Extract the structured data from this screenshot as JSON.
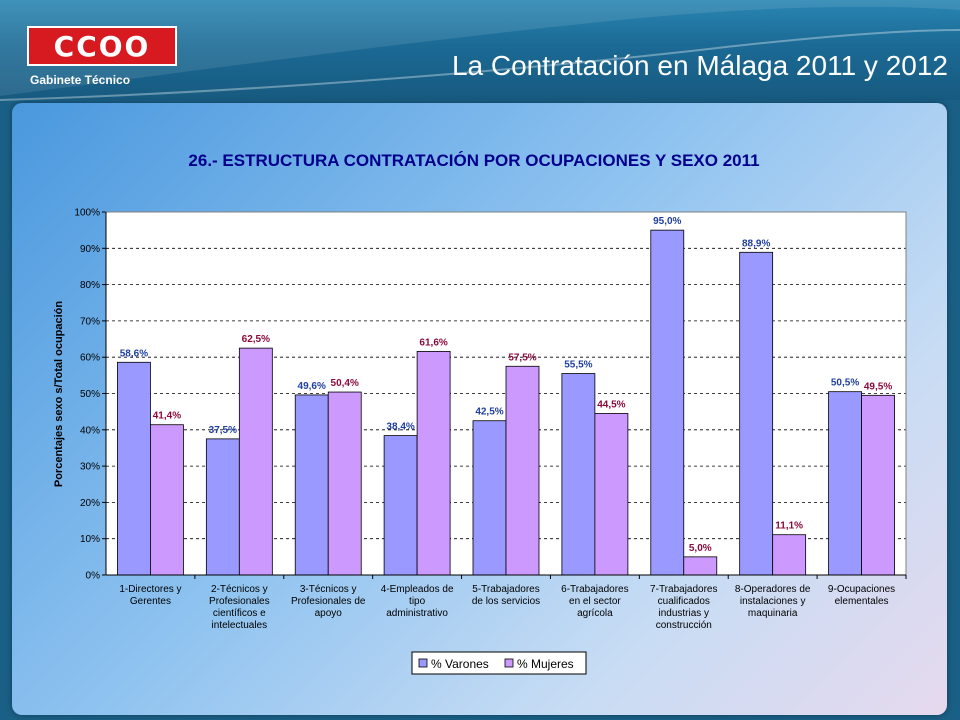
{
  "header": {
    "logo_text": "CCOO",
    "logo_subtitle": "Gabinete   Técnico",
    "title": "La Contratación en Málaga 2011 y 2012"
  },
  "colors": {
    "varones": "#9999ff",
    "mujeres": "#cc99ff",
    "varones_label": "#1f3f9f",
    "mujeres_label": "#8b0a3c",
    "title": "#00008b",
    "logo_red": "#d71920"
  },
  "chart_data": {
    "type": "bar",
    "title": "26.- ESTRUCTURA CONTRATACIÓN POR OCUPACIONES Y SEXO 2011",
    "ylabel": "Porcentajes sexo s/Total ocupación",
    "xlabel": "",
    "ylim": [
      0,
      100
    ],
    "grid": true,
    "legend_position": "bottom",
    "y_ticks": [
      "0%",
      "10%",
      "20%",
      "30%",
      "40%",
      "50%",
      "60%",
      "70%",
      "80%",
      "90%",
      "100%"
    ],
    "categories": [
      [
        "1-Directores y",
        "Gerentes"
      ],
      [
        "2-Técnicos y",
        "Profesionales",
        "científicos e",
        "intelectuales"
      ],
      [
        "3-Técnicos y",
        "Profesionales de",
        "apoyo"
      ],
      [
        "4-Empleados de",
        "tipo",
        "administrativo"
      ],
      [
        "5-Trabajadores",
        "de los servicios"
      ],
      [
        "6-Trabajadores",
        "en el sector",
        "agrícola"
      ],
      [
        "7-Trabajadores",
        "cualificados",
        "industrias y",
        "construcción"
      ],
      [
        "8-Operadores de",
        "instalaciones y",
        "maquinaria"
      ],
      [
        "9-Ocupaciones",
        "elementales"
      ]
    ],
    "series": [
      {
        "name": "% Varones",
        "values": [
          58.6,
          37.5,
          49.6,
          38.4,
          42.5,
          55.5,
          95.0,
          88.9,
          50.5
        ],
        "labels": [
          "58,6%",
          "37,5%",
          "49,6%",
          "38,4%",
          "42,5%",
          "55,5%",
          "95,0%",
          "88,9%",
          "50,5%"
        ]
      },
      {
        "name": "% Mujeres",
        "values": [
          41.4,
          62.5,
          50.4,
          61.6,
          57.5,
          44.5,
          5.0,
          11.1,
          49.5
        ],
        "labels": [
          "41,4%",
          "62,5%",
          "50,4%",
          "61,6%",
          "57,5%",
          "44,5%",
          "5,0%",
          "11,1%",
          "49,5%"
        ]
      }
    ]
  }
}
